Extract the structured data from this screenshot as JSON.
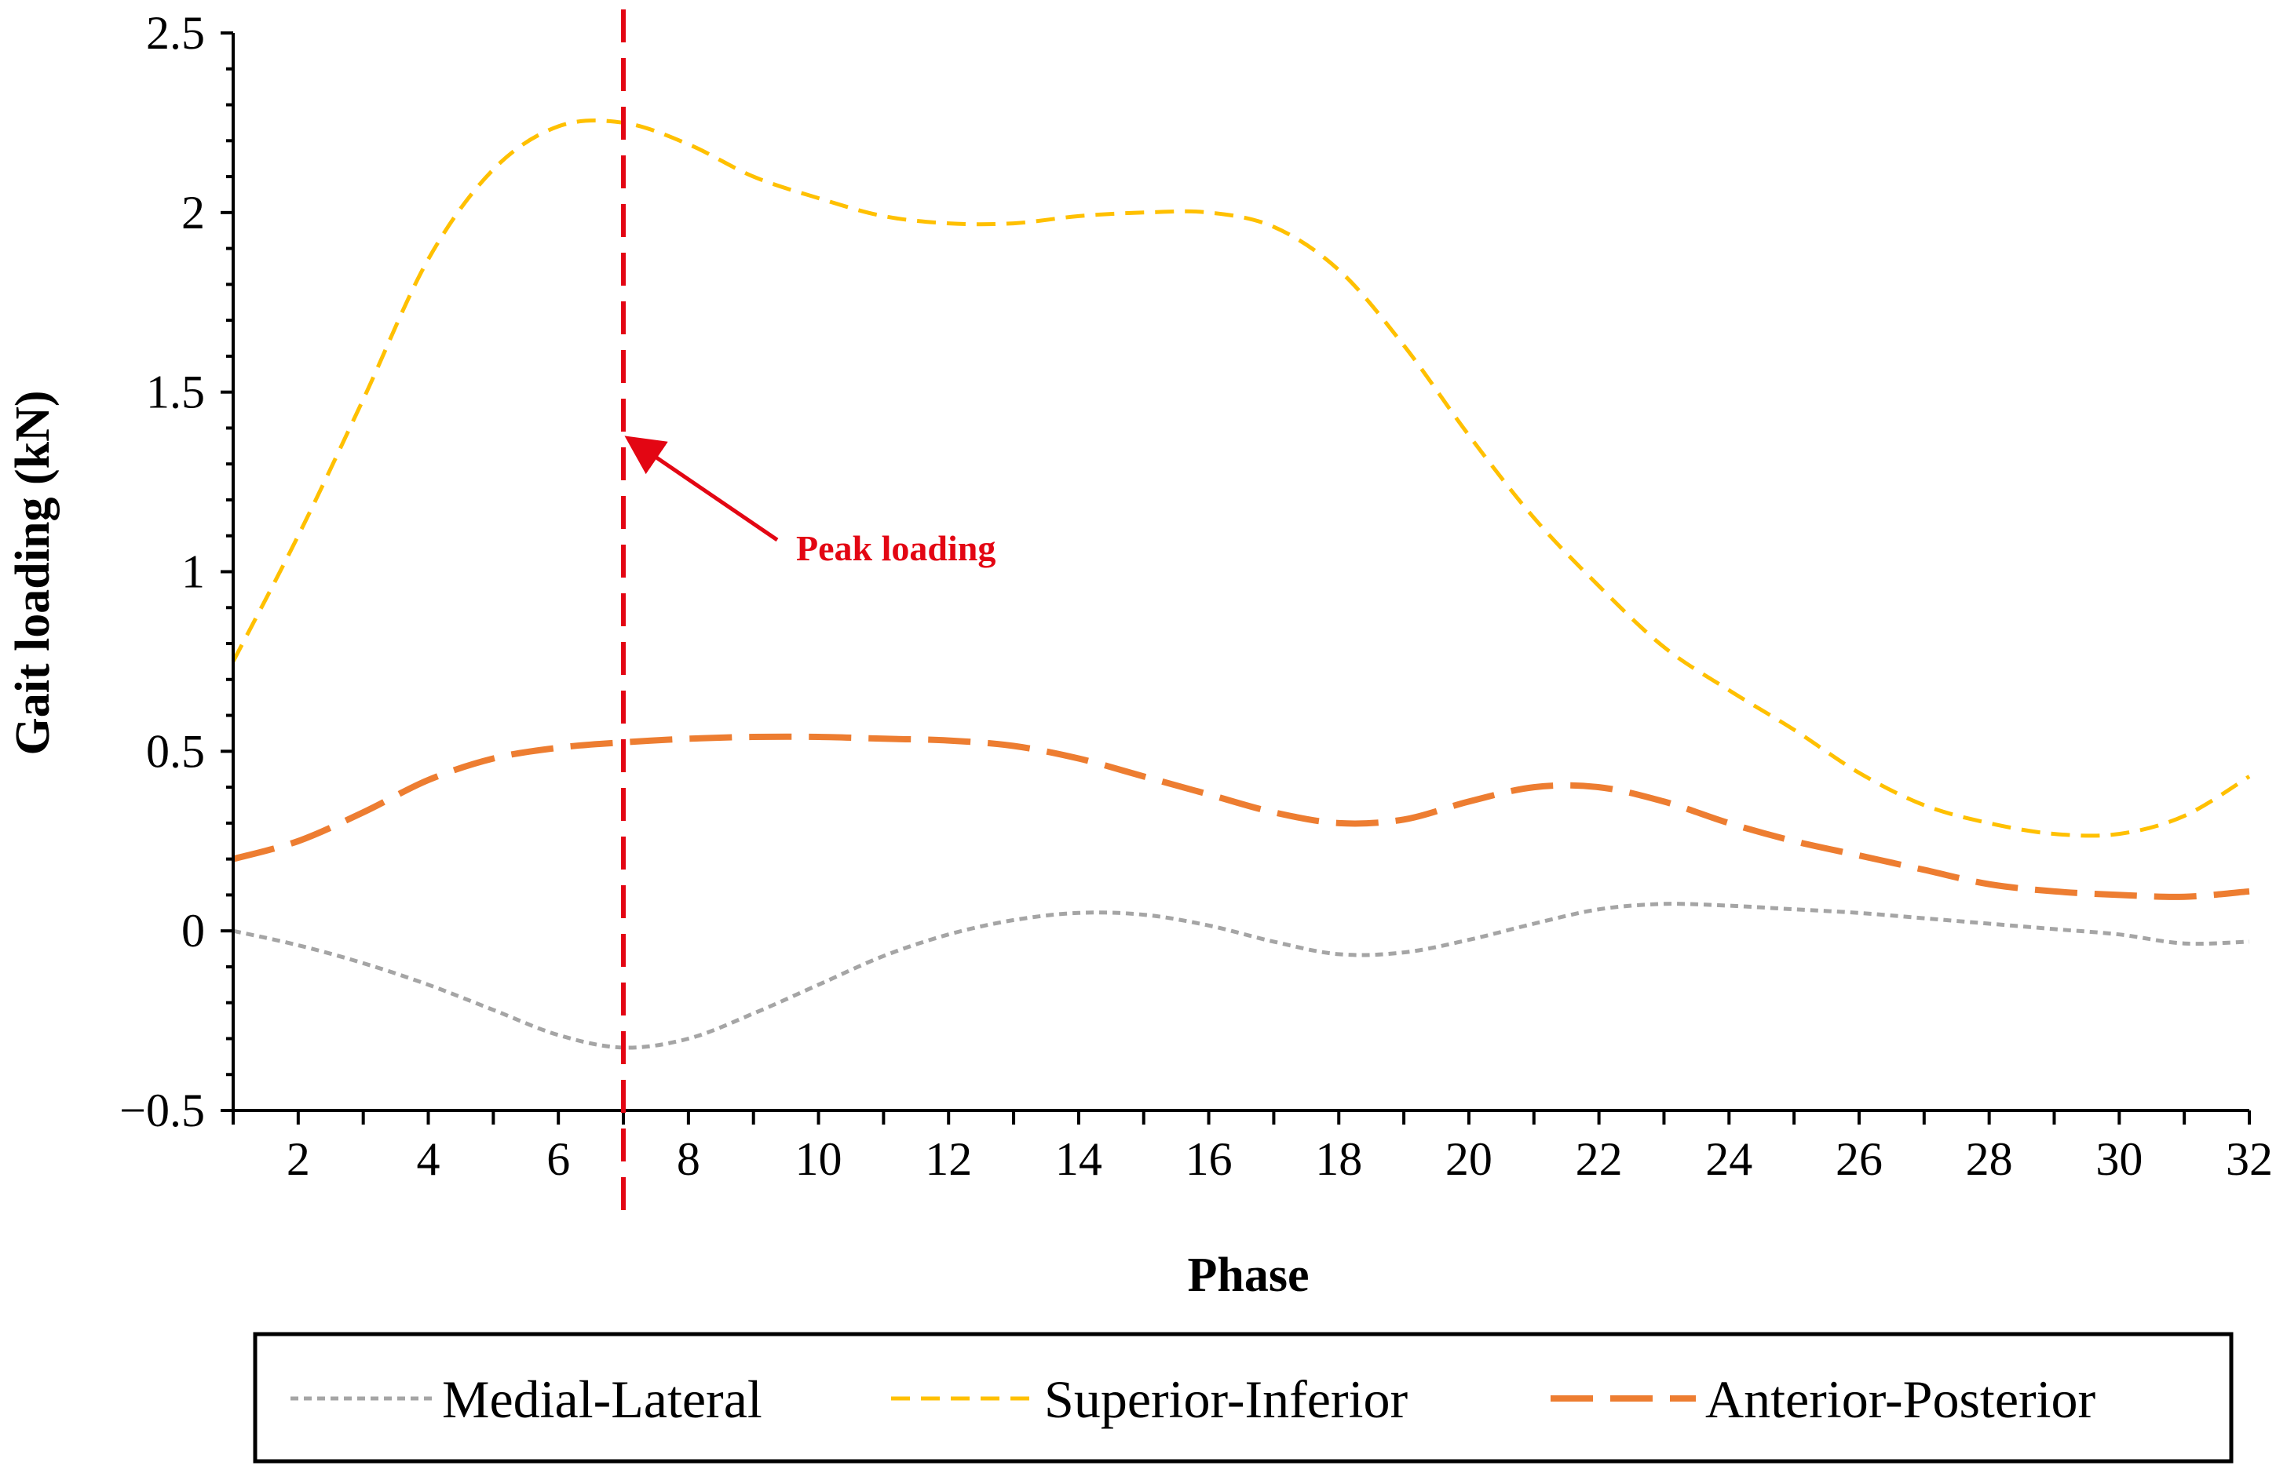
{
  "chart_data": {
    "type": "line",
    "title": "",
    "xlabel": "Phase",
    "ylabel": "Gait loading (kN)",
    "xlim": [
      1,
      32
    ],
    "ylim": [
      -0.5,
      2.5
    ],
    "x_ticks": [
      2,
      4,
      6,
      8,
      10,
      12,
      14,
      16,
      18,
      20,
      22,
      24,
      26,
      28,
      30,
      32
    ],
    "y_ticks": [
      -0.5,
      0,
      0.5,
      1,
      1.5,
      2,
      2.5
    ],
    "y_tick_labels": [
      "−0.5",
      "0",
      "0.5",
      "1",
      "1.5",
      "2",
      "2.5"
    ],
    "legend_position": "bottom",
    "series": [
      {
        "name": "Medial-Lateral",
        "color": "#a5a5a5",
        "dash": "short-dash",
        "points": [
          [
            1,
            0
          ],
          [
            2,
            -0.04
          ],
          [
            3,
            -0.09
          ],
          [
            4,
            -0.15
          ],
          [
            5,
            -0.22
          ],
          [
            6,
            -0.29
          ],
          [
            7,
            -0.325
          ],
          [
            8,
            -0.3
          ],
          [
            9,
            -0.23
          ],
          [
            10,
            -0.15
          ],
          [
            11,
            -0.07
          ],
          [
            12,
            -0.01
          ],
          [
            13,
            0.03
          ],
          [
            14,
            0.05
          ],
          [
            15,
            0.045
          ],
          [
            16,
            0.015
          ],
          [
            17,
            -0.03
          ],
          [
            18,
            -0.065
          ],
          [
            19,
            -0.06
          ],
          [
            20,
            -0.025
          ],
          [
            21,
            0.02
          ],
          [
            22,
            0.06
          ],
          [
            23,
            0.075
          ],
          [
            24,
            0.07
          ],
          [
            25,
            0.06
          ],
          [
            26,
            0.05
          ],
          [
            27,
            0.035
          ],
          [
            28,
            0.02
          ],
          [
            29,
            0.005
          ],
          [
            30,
            -0.01
          ],
          [
            31,
            -0.035
          ],
          [
            32,
            -0.03
          ]
        ]
      },
      {
        "name": "Superior-Inferior",
        "color": "#ffc000",
        "dash": "dash",
        "points": [
          [
            1,
            0.75
          ],
          [
            2,
            1.1
          ],
          [
            3,
            1.48
          ],
          [
            4,
            1.87
          ],
          [
            5,
            2.12
          ],
          [
            6,
            2.24
          ],
          [
            7,
            2.25
          ],
          [
            8,
            2.19
          ],
          [
            9,
            2.1
          ],
          [
            10,
            2.04
          ],
          [
            11,
            1.99
          ],
          [
            12,
            1.97
          ],
          [
            13,
            1.97
          ],
          [
            14,
            1.99
          ],
          [
            15,
            2.0
          ],
          [
            16,
            2.0
          ],
          [
            17,
            1.96
          ],
          [
            18,
            1.84
          ],
          [
            19,
            1.63
          ],
          [
            20,
            1.38
          ],
          [
            21,
            1.15
          ],
          [
            22,
            0.96
          ],
          [
            23,
            0.79
          ],
          [
            24,
            0.67
          ],
          [
            25,
            0.56
          ],
          [
            26,
            0.44
          ],
          [
            27,
            0.35
          ],
          [
            28,
            0.3
          ],
          [
            29,
            0.27
          ],
          [
            30,
            0.27
          ],
          [
            31,
            0.32
          ],
          [
            32,
            0.43
          ]
        ]
      },
      {
        "name": "Anterior-Posterior",
        "color": "#ed7d31",
        "dash": "long-dash",
        "points": [
          [
            1,
            0.2
          ],
          [
            2,
            0.25
          ],
          [
            3,
            0.33
          ],
          [
            4,
            0.42
          ],
          [
            5,
            0.48
          ],
          [
            6,
            0.51
          ],
          [
            7,
            0.525
          ],
          [
            8,
            0.535
          ],
          [
            9,
            0.54
          ],
          [
            10,
            0.54
          ],
          [
            11,
            0.535
          ],
          [
            12,
            0.53
          ],
          [
            13,
            0.515
          ],
          [
            14,
            0.48
          ],
          [
            15,
            0.43
          ],
          [
            16,
            0.38
          ],
          [
            17,
            0.33
          ],
          [
            18,
            0.3
          ],
          [
            19,
            0.31
          ],
          [
            20,
            0.36
          ],
          [
            21,
            0.4
          ],
          [
            22,
            0.4
          ],
          [
            23,
            0.36
          ],
          [
            24,
            0.3
          ],
          [
            25,
            0.25
          ],
          [
            26,
            0.21
          ],
          [
            27,
            0.17
          ],
          [
            28,
            0.13
          ],
          [
            29,
            0.11
          ],
          [
            30,
            0.1
          ],
          [
            31,
            0.095
          ],
          [
            32,
            0.11
          ]
        ]
      }
    ],
    "reference_line": {
      "x": 7,
      "color": "#e30613",
      "style": "dashed"
    },
    "annotation": {
      "text": "Peak loading",
      "color": "#e30613",
      "points_to": [
        7,
        1.38
      ]
    }
  }
}
